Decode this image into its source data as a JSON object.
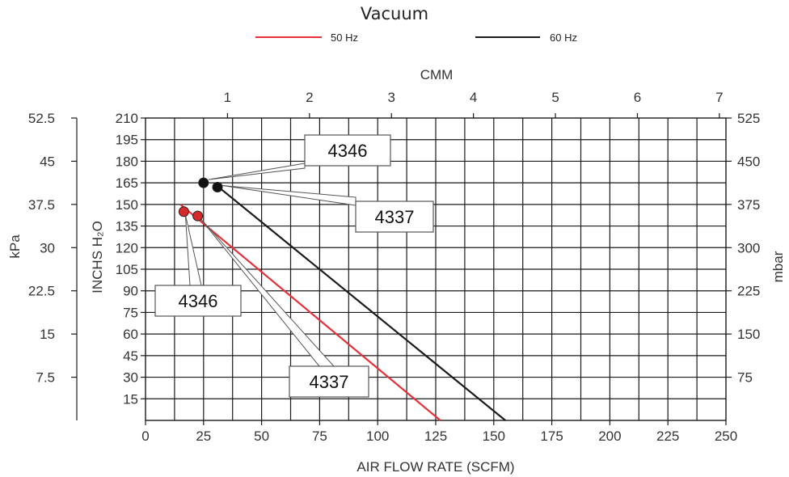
{
  "chart_data": {
    "type": "line",
    "title": "Vacuum",
    "legend": [
      {
        "name": "50 Hz",
        "color": "#e8303a"
      },
      {
        "name": "60 Hz",
        "color": "#1a1a1a"
      }
    ],
    "axes": {
      "x_bottom": {
        "label": "AIR FLOW RATE (SCFM)",
        "ticks": [
          0,
          25,
          50,
          75,
          100,
          125,
          150,
          175,
          200,
          225,
          250
        ],
        "range": [
          0,
          250
        ]
      },
      "x_top": {
        "label": "CMM",
        "ticks": [
          1,
          2,
          3,
          4,
          5,
          6,
          7
        ],
        "range": [
          0,
          7.08
        ]
      },
      "y_inner_left": {
        "label": "INCHS H₂O",
        "ticks": [
          15,
          30,
          45,
          60,
          75,
          90,
          105,
          120,
          135,
          150,
          165,
          180,
          195,
          210
        ],
        "range": [
          0,
          210
        ]
      },
      "y_outer_left": {
        "label": "kPa",
        "ticks": [
          7.5,
          15,
          22.5,
          30,
          37.5,
          45,
          52.5
        ],
        "range": [
          0,
          52.5
        ]
      },
      "y_right": {
        "label": "mbar",
        "ticks": [
          75,
          150,
          225,
          300,
          375,
          450,
          525
        ],
        "range": [
          0,
          525
        ]
      }
    },
    "grid": true,
    "series": [
      {
        "name": "50 Hz",
        "color": "#e8303a",
        "x": [
          15,
          127
        ],
        "y": [
          150,
          0
        ]
      },
      {
        "name": "60 Hz",
        "color": "#1a1a1a",
        "x": [
          30,
          155
        ],
        "y": [
          164,
          0
        ]
      }
    ],
    "points": [
      {
        "model": "4346",
        "series": "60 Hz",
        "x": 25,
        "y": 165,
        "color": "#111111"
      },
      {
        "model": "4337",
        "series": "60 Hz",
        "x": 31,
        "y": 162,
        "color": "#111111"
      },
      {
        "model": "4346",
        "series": "50 Hz",
        "x": 16.5,
        "y": 145,
        "color": "#d62a2a"
      },
      {
        "model": "4337",
        "series": "50 Hz",
        "x": 22.5,
        "y": 142,
        "color": "#d62a2a"
      }
    ],
    "callouts": [
      {
        "label": "4346",
        "points_to": 0
      },
      {
        "label": "4337",
        "points_to": 1
      },
      {
        "label": "4346",
        "points_to": 2
      },
      {
        "label": "4337",
        "points_to": 3
      }
    ]
  }
}
